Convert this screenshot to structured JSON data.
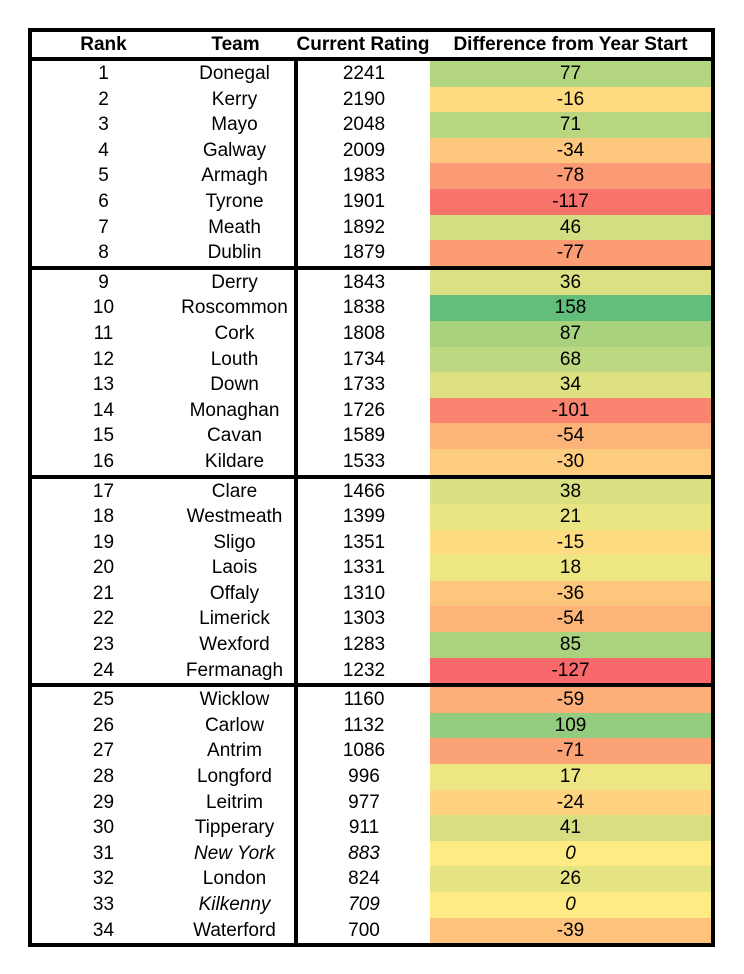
{
  "chart_data": {
    "type": "table",
    "title": "",
    "columns": [
      "Rank",
      "Team",
      "Current Rating",
      "Difference from Year Start"
    ],
    "group_borders_after_ranks": [
      8,
      16,
      24
    ],
    "color_scale": {
      "min_value": -127,
      "mid_value": 0,
      "max_value": 158,
      "min_color": "#F8696B",
      "mid_color": "#FFEB84",
      "max_color": "#63BE7B"
    },
    "style": {
      "border_color": "#000000",
      "background_color": "#FFFFFF",
      "text_color": "#000000"
    },
    "rows": [
      {
        "rank": 1,
        "team": "Donegal",
        "current_rating": 2241,
        "difference": 77,
        "fill": "#B3D580",
        "italic": false
      },
      {
        "rank": 2,
        "team": "Kerry",
        "current_rating": 2190,
        "difference": -16,
        "fill": "#FEDB81",
        "italic": false
      },
      {
        "rank": 3,
        "team": "Mayo",
        "current_rating": 2048,
        "difference": 71,
        "fill": "#B9D780",
        "italic": false
      },
      {
        "rank": 4,
        "team": "Galway",
        "current_rating": 2009,
        "difference": -34,
        "fill": "#FDC87D",
        "italic": false
      },
      {
        "rank": 5,
        "team": "Armagh",
        "current_rating": 1983,
        "difference": -78,
        "fill": "#FB9B75",
        "italic": false
      },
      {
        "rank": 6,
        "team": "Tyrone",
        "current_rating": 1901,
        "difference": -117,
        "fill": "#F9736D",
        "italic": false
      },
      {
        "rank": 7,
        "team": "Meath",
        "current_rating": 1892,
        "difference": 46,
        "fill": "#D2DE81",
        "italic": false
      },
      {
        "rank": 8,
        "team": "Dublin",
        "current_rating": 1879,
        "difference": -77,
        "fill": "#FB9C75",
        "italic": false
      },
      {
        "rank": 9,
        "team": "Derry",
        "current_rating": 1843,
        "difference": 36,
        "fill": "#DBE182",
        "italic": false
      },
      {
        "rank": 10,
        "team": "Roscommon",
        "current_rating": 1838,
        "difference": 158,
        "fill": "#63BE7B",
        "italic": false
      },
      {
        "rank": 11,
        "team": "Cork",
        "current_rating": 1808,
        "difference": 87,
        "fill": "#A9D27F",
        "italic": false
      },
      {
        "rank": 12,
        "team": "Louth",
        "current_rating": 1734,
        "difference": 68,
        "fill": "#BCD880",
        "italic": false
      },
      {
        "rank": 13,
        "team": "Down",
        "current_rating": 1733,
        "difference": 34,
        "fill": "#DDE182",
        "italic": false
      },
      {
        "rank": 14,
        "team": "Monaghan",
        "current_rating": 1726,
        "difference": -101,
        "fill": "#F98470",
        "italic": false
      },
      {
        "rank": 15,
        "team": "Cavan",
        "current_rating": 1589,
        "difference": -54,
        "fill": "#FCB479",
        "italic": false
      },
      {
        "rank": 16,
        "team": "Kildare",
        "current_rating": 1533,
        "difference": -30,
        "fill": "#FDCC7E",
        "italic": false
      },
      {
        "rank": 17,
        "team": "Clare",
        "current_rating": 1466,
        "difference": 38,
        "fill": "#D9E082",
        "italic": false
      },
      {
        "rank": 18,
        "team": "Westmeath",
        "current_rating": 1399,
        "difference": 21,
        "fill": "#EAE583",
        "italic": false
      },
      {
        "rank": 19,
        "team": "Sligo",
        "current_rating": 1351,
        "difference": -15,
        "fill": "#FEDC81",
        "italic": false
      },
      {
        "rank": 20,
        "team": "Laois",
        "current_rating": 1331,
        "difference": 18,
        "fill": "#EDE683",
        "italic": false
      },
      {
        "rank": 21,
        "team": "Offaly",
        "current_rating": 1310,
        "difference": -36,
        "fill": "#FDC67D",
        "italic": false
      },
      {
        "rank": 22,
        "team": "Limerick",
        "current_rating": 1303,
        "difference": -54,
        "fill": "#FCB479",
        "italic": false
      },
      {
        "rank": 23,
        "team": "Wexford",
        "current_rating": 1283,
        "difference": 85,
        "fill": "#ABD37F",
        "italic": false
      },
      {
        "rank": 24,
        "team": "Fermanagh",
        "current_rating": 1232,
        "difference": -127,
        "fill": "#F8696B",
        "italic": false
      },
      {
        "rank": 25,
        "team": "Wicklow",
        "current_rating": 1160,
        "difference": -59,
        "fill": "#FCAF78",
        "italic": false
      },
      {
        "rank": 26,
        "team": "Carlow",
        "current_rating": 1132,
        "difference": 109,
        "fill": "#93CC7E",
        "italic": false
      },
      {
        "rank": 27,
        "team": "Antrim",
        "current_rating": 1086,
        "difference": -71,
        "fill": "#FBA276",
        "italic": false
      },
      {
        "rank": 28,
        "team": "Longford",
        "current_rating": 996,
        "difference": 17,
        "fill": "#EEE683",
        "italic": false
      },
      {
        "rank": 29,
        "team": "Leitrim",
        "current_rating": 977,
        "difference": -24,
        "fill": "#FED27F",
        "italic": false
      },
      {
        "rank": 30,
        "team": "Tipperary",
        "current_rating": 911,
        "difference": 41,
        "fill": "#D7DF82",
        "italic": false
      },
      {
        "rank": 31,
        "team": "New York",
        "current_rating": 883,
        "difference": 0,
        "fill": "#FFEB84",
        "italic": true
      },
      {
        "rank": 32,
        "team": "London",
        "current_rating": 824,
        "difference": 26,
        "fill": "#E5E483",
        "italic": false
      },
      {
        "rank": 33,
        "team": "Kilkenny",
        "current_rating": 709,
        "difference": 0,
        "fill": "#FFEB84",
        "italic": true
      },
      {
        "rank": 34,
        "team": "Waterford",
        "current_rating": 700,
        "difference": -39,
        "fill": "#FDC37C",
        "italic": false
      }
    ]
  }
}
